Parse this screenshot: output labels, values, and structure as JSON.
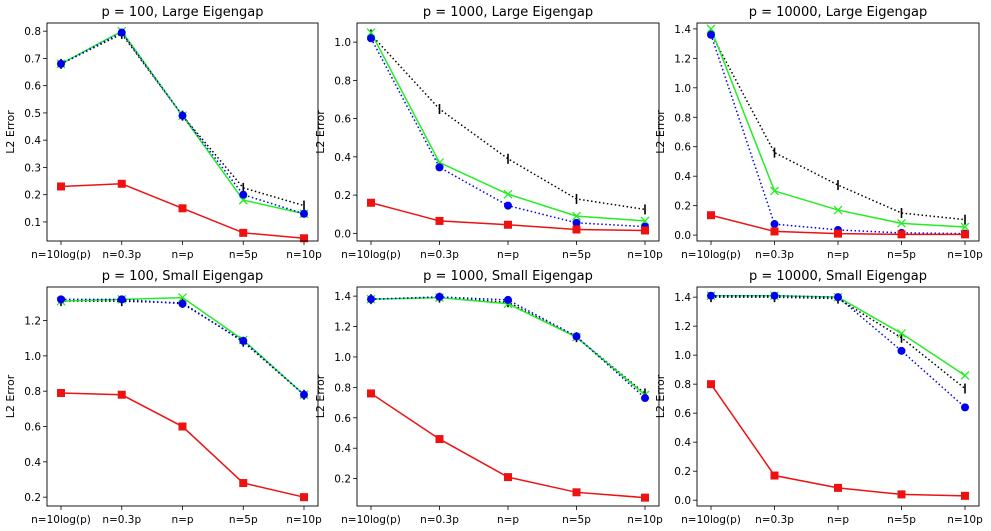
{
  "chart_data": [
    {
      "type": "line",
      "title": "p = 100, Large Eigengap",
      "ylabel": "L2 Error",
      "categories": [
        "n=10log(p)",
        "n=0.3p",
        "n=p",
        "n=5p",
        "n=10p"
      ],
      "ylim": [
        0.03,
        0.83
      ],
      "yticks": [
        "0.1",
        "0.2",
        "0.3",
        "0.4",
        "0.5",
        "0.6",
        "0.7",
        "0.8"
      ],
      "series": [
        {
          "values": [
            0.68,
            0.79,
            0.49,
            0.225,
            0.16
          ],
          "color": "#000000",
          "style": "dotted",
          "marker": "tick"
        },
        {
          "values": [
            0.68,
            0.8,
            0.49,
            0.18,
            0.13
          ],
          "color": "#22ee22",
          "style": "solid",
          "marker": "x"
        },
        {
          "values": [
            0.68,
            0.795,
            0.49,
            0.2,
            0.13
          ],
          "color": "#0000ee",
          "style": "dotted",
          "marker": "circle"
        },
        {
          "values": [
            0.23,
            0.24,
            0.15,
            0.06,
            0.04
          ],
          "color": "#ee1111",
          "style": "solid",
          "marker": "square"
        }
      ]
    },
    {
      "type": "line",
      "title": "p = 1000, Large Eigengap",
      "ylabel": "L2 Error",
      "categories": [
        "n=10log(p)",
        "n=0.3p",
        "n=p",
        "n=5p",
        "n=10p"
      ],
      "ylim": [
        -0.04,
        1.1
      ],
      "yticks": [
        "0.0",
        "0.2",
        "0.4",
        "0.6",
        "0.8",
        "1.0"
      ],
      "series": [
        {
          "values": [
            1.04,
            0.65,
            0.39,
            0.18,
            0.125
          ],
          "color": "#000000",
          "style": "dotted",
          "marker": "tick"
        },
        {
          "values": [
            1.05,
            0.37,
            0.205,
            0.09,
            0.065
          ],
          "color": "#22ee22",
          "style": "solid",
          "marker": "x"
        },
        {
          "values": [
            1.02,
            0.345,
            0.145,
            0.055,
            0.035
          ],
          "color": "#0000ee",
          "style": "dotted",
          "marker": "circle"
        },
        {
          "values": [
            0.16,
            0.065,
            0.045,
            0.02,
            0.015
          ],
          "color": "#ee1111",
          "style": "solid",
          "marker": "square"
        }
      ]
    },
    {
      "type": "line",
      "title": "p = 10000, Large Eigengap",
      "ylabel": "L2 Error",
      "categories": [
        "n=10log(p)",
        "n=0.3p",
        "n=p",
        "n=5p",
        "n=10p"
      ],
      "ylim": [
        -0.04,
        1.44
      ],
      "yticks": [
        "0.0",
        "0.2",
        "0.4",
        "0.6",
        "0.8",
        "1.0",
        "1.2",
        "1.4"
      ],
      "series": [
        {
          "values": [
            1.37,
            0.56,
            0.34,
            0.15,
            0.105
          ],
          "color": "#000000",
          "style": "dotted",
          "marker": "tick"
        },
        {
          "values": [
            1.4,
            0.3,
            0.17,
            0.08,
            0.055
          ],
          "color": "#22ee22",
          "style": "solid",
          "marker": "x"
        },
        {
          "values": [
            1.36,
            0.075,
            0.035,
            0.015,
            0.01
          ],
          "color": "#0000ee",
          "style": "dotted",
          "marker": "circle"
        },
        {
          "values": [
            0.135,
            0.025,
            0.01,
            0.005,
            0.005
          ],
          "color": "#ee1111",
          "style": "solid",
          "marker": "square"
        }
      ]
    },
    {
      "type": "line",
      "title": "p = 100, Small Eigengap",
      "ylabel": "L2 Error",
      "categories": [
        "n=10log(p)",
        "n=0.3p",
        "n=p",
        "n=5p",
        "n=10p"
      ],
      "ylim": [
        0.15,
        1.39
      ],
      "yticks": [
        "0.2",
        "0.4",
        "0.6",
        "0.8",
        "1.0",
        "1.2"
      ],
      "series": [
        {
          "values": [
            1.31,
            1.31,
            1.3,
            1.08,
            0.78
          ],
          "color": "#000000",
          "style": "dotted",
          "marker": "tick"
        },
        {
          "values": [
            1.31,
            1.32,
            1.33,
            1.09,
            0.78
          ],
          "color": "#22ee22",
          "style": "solid",
          "marker": "x"
        },
        {
          "values": [
            1.32,
            1.32,
            1.295,
            1.085,
            0.78
          ],
          "color": "#0000ee",
          "style": "dotted",
          "marker": "circle"
        },
        {
          "values": [
            0.79,
            0.78,
            0.6,
            0.28,
            0.2
          ],
          "color": "#ee1111",
          "style": "solid",
          "marker": "square"
        }
      ]
    },
    {
      "type": "line",
      "title": "p = 1000, Small Eigengap",
      "ylabel": "L2 Error",
      "categories": [
        "n=10log(p)",
        "n=0.3p",
        "n=p",
        "n=5p",
        "n=10p"
      ],
      "ylim": [
        0.02,
        1.46
      ],
      "yticks": [
        "0.2",
        "0.4",
        "0.6",
        "0.8",
        "1.0",
        "1.2",
        "1.4"
      ],
      "series": [
        {
          "values": [
            1.38,
            1.39,
            1.36,
            1.13,
            0.76
          ],
          "color": "#000000",
          "style": "dotted",
          "marker": "tick"
        },
        {
          "values": [
            1.38,
            1.39,
            1.35,
            1.13,
            0.75
          ],
          "color": "#22ee22",
          "style": "solid",
          "marker": "x"
        },
        {
          "values": [
            1.38,
            1.395,
            1.375,
            1.135,
            0.73
          ],
          "color": "#0000ee",
          "style": "dotted",
          "marker": "circle"
        },
        {
          "values": [
            0.76,
            0.46,
            0.21,
            0.11,
            0.075
          ],
          "color": "#ee1111",
          "style": "solid",
          "marker": "square"
        }
      ]
    },
    {
      "type": "line",
      "title": "p = 10000, Small Eigengap",
      "ylabel": "L2 Error",
      "categories": [
        "n=10log(p)",
        "n=0.3p",
        "n=p",
        "n=5p",
        "n=10p"
      ],
      "ylim": [
        -0.04,
        1.47
      ],
      "yticks": [
        "0.0",
        "0.2",
        "0.4",
        "0.6",
        "0.8",
        "1.0",
        "1.2",
        "1.4"
      ],
      "series": [
        {
          "values": [
            1.4,
            1.4,
            1.39,
            1.12,
            0.77
          ],
          "color": "#000000",
          "style": "dotted",
          "marker": "tick"
        },
        {
          "values": [
            1.41,
            1.41,
            1.4,
            1.15,
            0.86
          ],
          "color": "#22ee22",
          "style": "solid",
          "marker": "x"
        },
        {
          "values": [
            1.41,
            1.41,
            1.4,
            1.03,
            0.64
          ],
          "color": "#0000ee",
          "style": "dotted",
          "marker": "circle"
        },
        {
          "values": [
            0.8,
            0.17,
            0.085,
            0.04,
            0.03
          ],
          "color": "#ee1111",
          "style": "solid",
          "marker": "square"
        }
      ]
    }
  ]
}
